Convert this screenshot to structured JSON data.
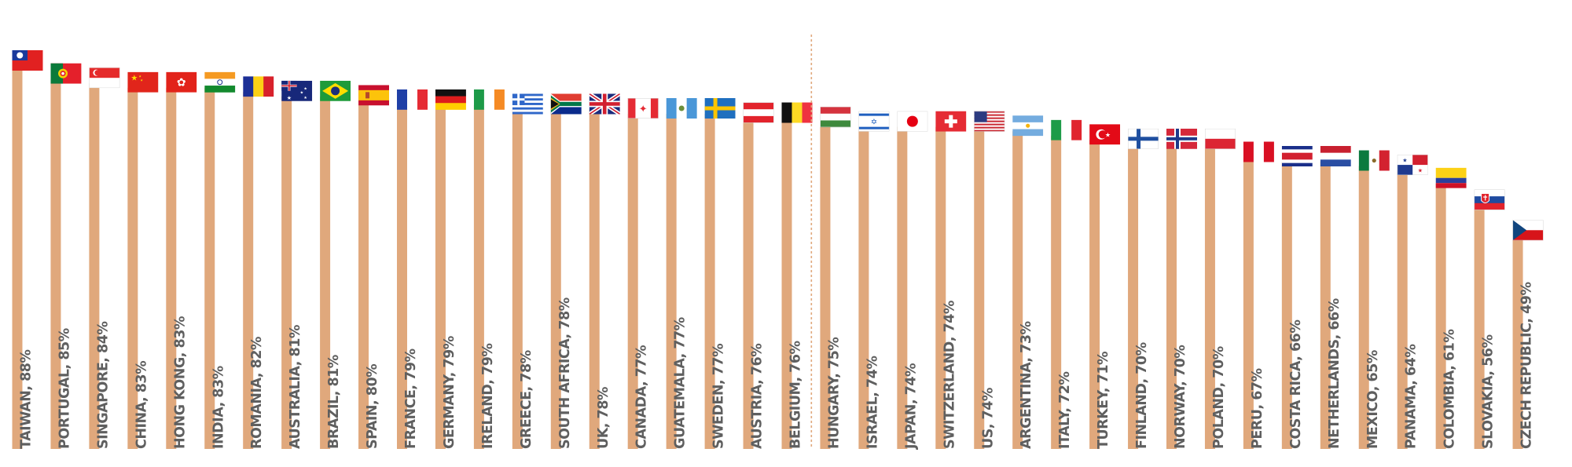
{
  "colors": {
    "bar": "#e0a87c",
    "label": "#5f5f5f",
    "divider": "#e0a87c"
  },
  "chart_data": {
    "type": "bar",
    "title": "",
    "xlabel": "",
    "ylabel": "",
    "ylim": [
      0,
      100
    ],
    "grid": false,
    "legend": "none",
    "divider_after_category": "BELGIUM",
    "categories": [
      "TAIWAN",
      "PORTUGAL",
      "SINGAPORE",
      "CHINA",
      "HONG KONG",
      "INDIA",
      "ROMANIA",
      "AUSTRALIA",
      "BRAZIL",
      "SPAIN",
      "FRANCE",
      "GERMANY",
      "IRELAND",
      "GREECE",
      "SOUTH AFRICA",
      "UK",
      "CANADA",
      "GUATEMALA",
      "SWEDEN",
      "AUSTRIA",
      "BELGIUM",
      "HUNGARY",
      "ISRAEL",
      "JAPAN",
      "SWITZERLAND",
      "US",
      "ARGENTINA",
      "ITALY",
      "TURKEY",
      "FINLAND",
      "NORWAY",
      "POLAND",
      "PERU",
      "COSTA RICA",
      "NETHERLANDS",
      "MEXICO",
      "PANAMA",
      "COLOMBIA",
      "SLOVAKIA",
      "CZECH REPUBLIC"
    ],
    "values": [
      88,
      85,
      84,
      83,
      83,
      83,
      82,
      81,
      81,
      80,
      79,
      79,
      79,
      78,
      78,
      78,
      77,
      77,
      77,
      76,
      76,
      75,
      74,
      74,
      74,
      74,
      73,
      72,
      71,
      70,
      70,
      70,
      67,
      66,
      66,
      65,
      64,
      61,
      56,
      49
    ],
    "labels": [
      "TAIWAN, 88%",
      "PORTUGAL, 85%",
      "SINGAPORE, 84%",
      "CHINA, 83%",
      "HONG KONG, 83%",
      "INDIA, 83%",
      "ROMANIA, 82%",
      "AUSTRALIA, 81%",
      "BRAZIL, 81%",
      "SPAIN, 80%",
      "FRANCE, 79%",
      "GERMANY, 79%",
      "IRELAND, 79%",
      "GREECE, 78%",
      "SOUTH AFRICA, 78%",
      "UK, 78%",
      "CANADA, 77%",
      "GUATEMALA, 77%",
      "SWEDEN, 77%",
      "AUSTRIA, 76%",
      "BELGIUM, 76%",
      "HUNGARY, 75%",
      "ISRAEL, 74%",
      "JAPAN, 74%",
      "SWITZERLAND, 74%",
      "US, 74%",
      "ARGENTINA, 73%",
      "ITALY, 72%",
      "TURKEY, 71%",
      "FINLAND, 70%",
      "NORWAY, 70%",
      "POLAND, 70%",
      "PERU, 67%",
      "COSTA RICA, 66%",
      "NETHERLANDS, 66%",
      "MEXICO, 65%",
      "PANAMA, 64%",
      "COLOMBIA, 61%",
      "SLOVAKIA, 56%",
      "CZECH REPUBLIC, 49%"
    ],
    "flags": [
      "taiwan-flag",
      "portugal-flag",
      "singapore-flag",
      "china-flag",
      "hong-kong-flag",
      "india-flag",
      "romania-flag",
      "australia-flag",
      "brazil-flag",
      "spain-flag",
      "france-flag",
      "germany-flag",
      "ireland-flag",
      "greece-flag",
      "south-africa-flag",
      "uk-flag",
      "canada-flag",
      "guatemala-flag",
      "sweden-flag",
      "austria-flag",
      "belgium-flag",
      "hungary-flag",
      "israel-flag",
      "japan-flag",
      "switzerland-flag",
      "us-flag",
      "argentina-flag",
      "italy-flag",
      "turkey-flag",
      "finland-flag",
      "norway-flag",
      "poland-flag",
      "peru-flag",
      "costa-rica-flag",
      "netherlands-flag",
      "mexico-flag",
      "panama-flag",
      "colombia-flag",
      "slovakia-flag",
      "czech-republic-flag"
    ]
  }
}
